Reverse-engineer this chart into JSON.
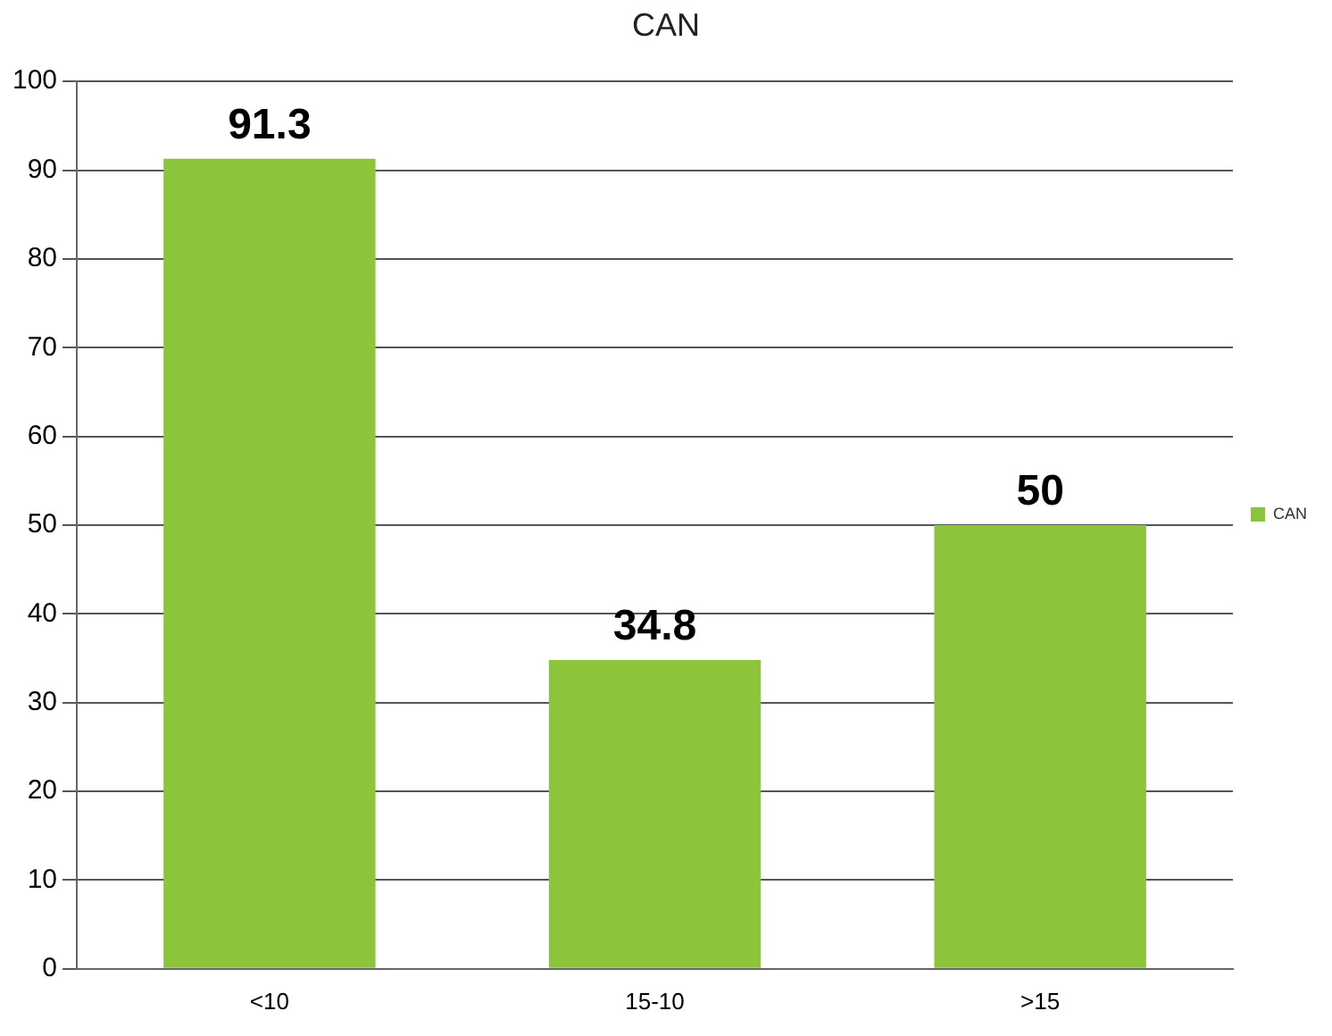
{
  "chart_data": {
    "type": "bar",
    "title": "CAN",
    "categories": [
      "<10",
      "15-10",
      ">15"
    ],
    "series": [
      {
        "name": "CAN",
        "color": "#8cc43c",
        "values": [
          91.3,
          34.8,
          50
        ]
      }
    ],
    "ylim": [
      0,
      100
    ],
    "yticks": [
      0,
      10,
      20,
      30,
      40,
      50,
      60,
      70,
      80,
      90,
      100
    ],
    "grid": "y",
    "legend": "right",
    "data_labels": true
  }
}
